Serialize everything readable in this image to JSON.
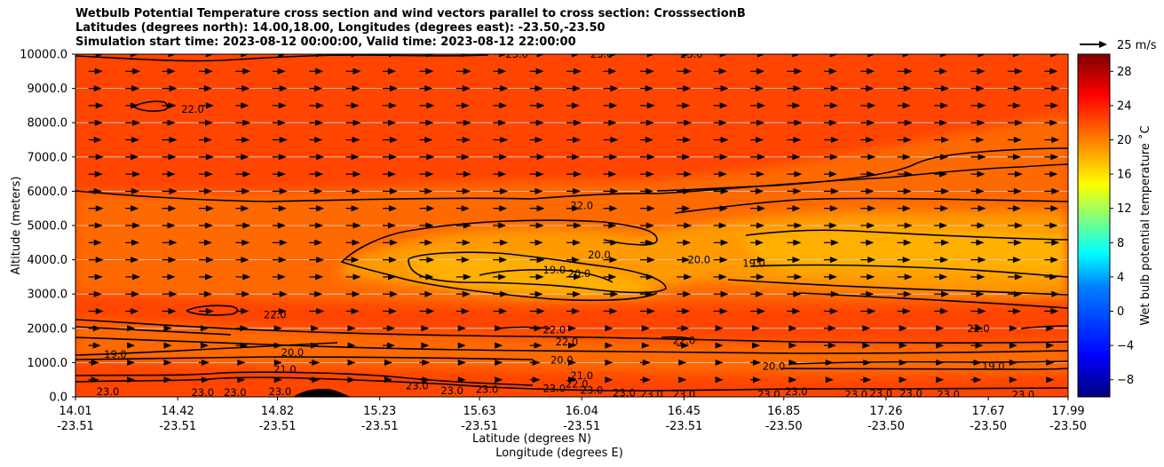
{
  "titles": [
    "Wetbulb Potential Temperature cross section and wind vectors parallel to cross section: CrosssectionB",
    "Latitudes (degrees north): 14.00,18.00, Longitudes (degrees east): -23.50,-23.50",
    "Simulation start time: 2023-08-12 00:00:00, Valid time: 2023-08-12 22:00:00"
  ],
  "chart_data": {
    "type": "heatmap",
    "ylabel": "Altitude (meters)",
    "xlabel": "Latitude (degrees N)",
    "xlabel2": "Longitude (degrees E)",
    "xlim": [
      14.01,
      17.99
    ],
    "ylim": [
      0,
      10000
    ],
    "yticks": [
      0,
      1000,
      2000,
      3000,
      4000,
      5000,
      6000,
      7000,
      8000,
      9000,
      10000
    ],
    "ytick_labels": [
      "0.0",
      "1000.0",
      "2000.0",
      "3000.0",
      "4000.0",
      "5000.0",
      "6000.0",
      "7000.0",
      "8000.0",
      "9000.0",
      "10000.0"
    ],
    "xticks": [
      {
        "lat": 14.01,
        "lat_label": "14.01",
        "lon_label": "-23.51"
      },
      {
        "lat": 14.42,
        "lat_label": "14.42",
        "lon_label": "-23.51"
      },
      {
        "lat": 14.82,
        "lat_label": "14.82",
        "lon_label": "-23.51"
      },
      {
        "lat": 15.23,
        "lat_label": "15.23",
        "lon_label": "-23.51"
      },
      {
        "lat": 15.63,
        "lat_label": "15.63",
        "lon_label": "-23.51"
      },
      {
        "lat": 16.04,
        "lat_label": "16.04",
        "lon_label": "-23.51"
      },
      {
        "lat": 16.45,
        "lat_label": "16.45",
        "lon_label": "-23.51"
      },
      {
        "lat": 16.85,
        "lat_label": "16.85",
        "lon_label": "-23.50"
      },
      {
        "lat": 17.26,
        "lat_label": "17.26",
        "lon_label": "-23.50"
      },
      {
        "lat": 17.67,
        "lat_label": "17.67",
        "lon_label": "-23.50"
      },
      {
        "lat": 17.99,
        "lat_label": "17.99",
        "lon_label": "-23.50"
      }
    ],
    "colorbar": {
      "label": "Wet bulb potential temperature ˚C",
      "range": [
        -10,
        30
      ],
      "ticks": [
        -8,
        -4,
        0,
        4,
        8,
        12,
        16,
        20,
        24,
        28
      ],
      "tick_labels": [
        "−8",
        "−4",
        "0",
        "4",
        "8",
        "12",
        "16",
        "20",
        "24",
        "28"
      ],
      "colors": [
        "#00007f",
        "#0000ff",
        "#007fff",
        "#00ffff",
        "#7fff7f",
        "#ffff00",
        "#ff7f00",
        "#ff0000",
        "#7f0000"
      ]
    },
    "field_colors": {
      "deep": "#ff4500",
      "mid": "#ff6a00",
      "warm": "#ff9a00",
      "core": "#ffb000",
      "terrain": "#000000",
      "contour": "#000000",
      "grid": "#d0d0d0"
    },
    "contour_levels": [
      19.0,
      20.0,
      21.0,
      22.0,
      23.0
    ],
    "contour_labels": [
      {
        "text": "23.0",
        "lat": 15.78,
        "alt": 10000
      },
      {
        "text": "23.0",
        "lat": 16.12,
        "alt": 10000
      },
      {
        "text": "23.0",
        "lat": 16.48,
        "alt": 10000
      },
      {
        "text": "22.0",
        "lat": 14.48,
        "alt": 8400
      },
      {
        "text": "22.0",
        "lat": 16.04,
        "alt": 5580
      },
      {
        "text": "19.0",
        "lat": 15.93,
        "alt": 3700
      },
      {
        "text": "20.0",
        "lat": 16.03,
        "alt": 3600
      },
      {
        "text": "20.0",
        "lat": 16.11,
        "alt": 4150
      },
      {
        "text": "20.0",
        "lat": 16.51,
        "alt": 4000
      },
      {
        "text": "19.0",
        "lat": 16.73,
        "alt": 3900
      },
      {
        "text": "22.0",
        "lat": 14.81,
        "alt": 2400
      },
      {
        "text": "19.0",
        "lat": 14.17,
        "alt": 1250
      },
      {
        "text": "20.0",
        "lat": 14.88,
        "alt": 1300
      },
      {
        "text": "22.0",
        "lat": 15.93,
        "alt": 1950
      },
      {
        "text": "22.0",
        "lat": 15.98,
        "alt": 1600
      },
      {
        "text": "22.0",
        "lat": 16.45,
        "alt": 1650
      },
      {
        "text": "22.0",
        "lat": 17.63,
        "alt": 2000
      },
      {
        "text": "20.0",
        "lat": 15.96,
        "alt": 1080
      },
      {
        "text": "21.0",
        "lat": 14.85,
        "alt": 800
      },
      {
        "text": "21.0",
        "lat": 16.04,
        "alt": 620
      },
      {
        "text": "22.0",
        "lat": 16.02,
        "alt": 380
      },
      {
        "text": "20.0",
        "lat": 16.81,
        "alt": 900
      },
      {
        "text": "19.0",
        "lat": 17.69,
        "alt": 900
      },
      {
        "text": "23.0",
        "lat": 14.14,
        "alt": 150
      },
      {
        "text": "23.0",
        "lat": 14.52,
        "alt": 130
      },
      {
        "text": "23.0",
        "lat": 14.65,
        "alt": 130
      },
      {
        "text": "23.0",
        "lat": 14.83,
        "alt": 150
      },
      {
        "text": "23.0",
        "lat": 15.38,
        "alt": 320
      },
      {
        "text": "23.0",
        "lat": 15.52,
        "alt": 180
      },
      {
        "text": "23.0",
        "lat": 15.66,
        "alt": 220
      },
      {
        "text": "23.0",
        "lat": 15.93,
        "alt": 250
      },
      {
        "text": "23.0",
        "lat": 16.08,
        "alt": 200
      },
      {
        "text": "23.0",
        "lat": 16.21,
        "alt": 120
      },
      {
        "text": "23.0",
        "lat": 16.32,
        "alt": 80
      },
      {
        "text": "23.0",
        "lat": 16.45,
        "alt": 80
      },
      {
        "text": "23.0",
        "lat": 16.79,
        "alt": 80
      },
      {
        "text": "23.0",
        "lat": 16.9,
        "alt": 150
      },
      {
        "text": "23.0",
        "lat": 17.14,
        "alt": 80
      },
      {
        "text": "23.0",
        "lat": 17.24,
        "alt": 100
      },
      {
        "text": "23.0",
        "lat": 17.36,
        "alt": 100
      },
      {
        "text": "23.0",
        "lat": 17.51,
        "alt": 80
      },
      {
        "text": "23.0",
        "lat": 17.81,
        "alt": 70
      }
    ],
    "wind_key": {
      "label": "25 m/s",
      "speed": 25
    },
    "wind_arrow_alts": [
      500,
      1000,
      1500,
      2000,
      2500,
      3000,
      3500,
      4000,
      4500,
      5000,
      5500,
      6000,
      6500,
      7000,
      7500,
      8000,
      8500,
      9000,
      9500,
      10000
    ]
  }
}
